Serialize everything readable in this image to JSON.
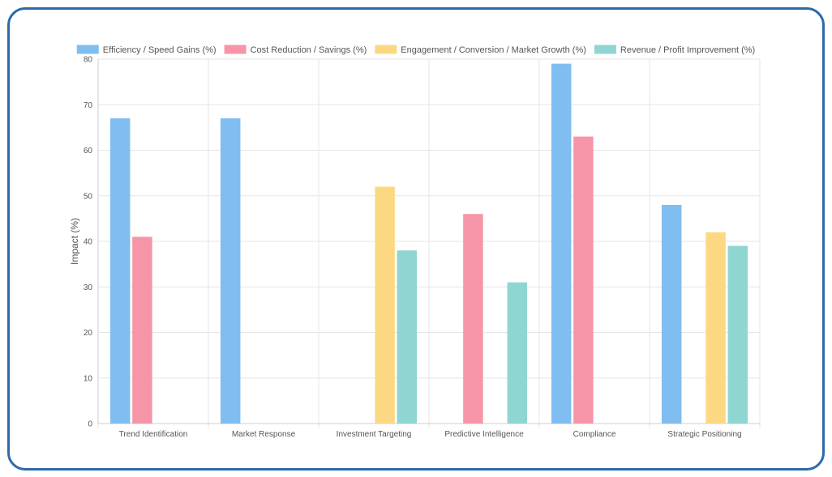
{
  "chart_data": {
    "type": "bar",
    "title": "",
    "xlabel": "",
    "ylabel": "Impact (%)",
    "ylim": [
      0,
      80
    ],
    "yticks": [
      0,
      10,
      20,
      30,
      40,
      50,
      60,
      70,
      80
    ],
    "grid": true,
    "legend_position": "top",
    "categories": [
      "Trend Identification",
      "Market Response",
      "Investment Targeting",
      "Predictive Intelligence",
      "Compliance",
      "Strategic Positioning"
    ],
    "series": [
      {
        "name": "Efficiency / Speed Gains (%)",
        "color": "#80bdf0",
        "values": [
          67,
          67,
          null,
          null,
          79,
          48
        ]
      },
      {
        "name": "Cost Reduction / Savings (%)",
        "color": "#f795a8",
        "values": [
          41,
          null,
          null,
          46,
          63,
          null
        ]
      },
      {
        "name": "Engagement / Conversion / Market Growth (%)",
        "color": "#fcd882",
        "values": [
          null,
          null,
          52,
          null,
          null,
          42
        ]
      },
      {
        "name": "Revenue / Profit Improvement (%)",
        "color": "#8fd6d3",
        "values": [
          null,
          null,
          38,
          31,
          null,
          39
        ]
      }
    ]
  }
}
